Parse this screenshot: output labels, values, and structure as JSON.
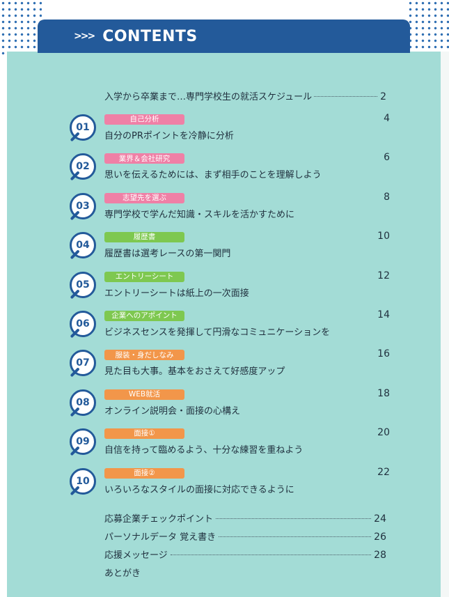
{
  "header": {
    "arrows": ">>>",
    "title": "CONTENTS"
  },
  "colors": {
    "navy": "#235a9a",
    "panel": "#a3dcd6",
    "pink": "#ef80a6",
    "green": "#7ec850",
    "orange": "#f2964a"
  },
  "intro": {
    "label": "入学から卒業まで…専門学校生の就活スケジュール",
    "page": "2"
  },
  "chapters": [
    {
      "num": "01",
      "tag": "自己分析",
      "tag_color": "pink",
      "page": "4",
      "subtitle": "自分のPRポイントを冷静に分析"
    },
    {
      "num": "02",
      "tag": "業界＆会社研究",
      "tag_color": "pink",
      "page": "6",
      "subtitle": "思いを伝えるためには、まず相手のことを理解しよう"
    },
    {
      "num": "03",
      "tag": "志望先を選ぶ",
      "tag_color": "pink",
      "page": "8",
      "subtitle": "専門学校で学んだ知識・スキルを活かすために"
    },
    {
      "num": "04",
      "tag": "履歴書",
      "tag_color": "green",
      "page": "10",
      "subtitle": "履歴書は選考レースの第一関門"
    },
    {
      "num": "05",
      "tag": "エントリーシート",
      "tag_color": "green",
      "page": "12",
      "subtitle": "エントリーシートは紙上の一次面接"
    },
    {
      "num": "06",
      "tag": "企業へのアポイント",
      "tag_color": "green",
      "page": "14",
      "subtitle": "ビジネスセンスを発揮して円滑なコミュニケーションを"
    },
    {
      "num": "07",
      "tag": "服装・身だしなみ",
      "tag_color": "orange",
      "page": "16",
      "subtitle": "見た目も大事。基本をおさえて好感度アップ"
    },
    {
      "num": "08",
      "tag": "WEB就活",
      "tag_color": "orange",
      "page": "18",
      "subtitle": "オンライン説明会・面接の心構え"
    },
    {
      "num": "09",
      "tag": "面接①",
      "tag_color": "orange",
      "page": "20",
      "subtitle": "自信を持って臨めるよう、十分な練習を重ねよう"
    },
    {
      "num": "10",
      "tag": "面接②",
      "tag_color": "orange",
      "page": "22",
      "subtitle": "いろいろなスタイルの面接に対応できるように"
    }
  ],
  "appendix": [
    {
      "label": "応募企業チェックポイント",
      "page": "24"
    },
    {
      "label": "パーソナルデータ 覚え書き",
      "page": "26"
    },
    {
      "label": "応援メッセージ",
      "page": "28"
    },
    {
      "label": "あとがき",
      "page": ""
    }
  ]
}
